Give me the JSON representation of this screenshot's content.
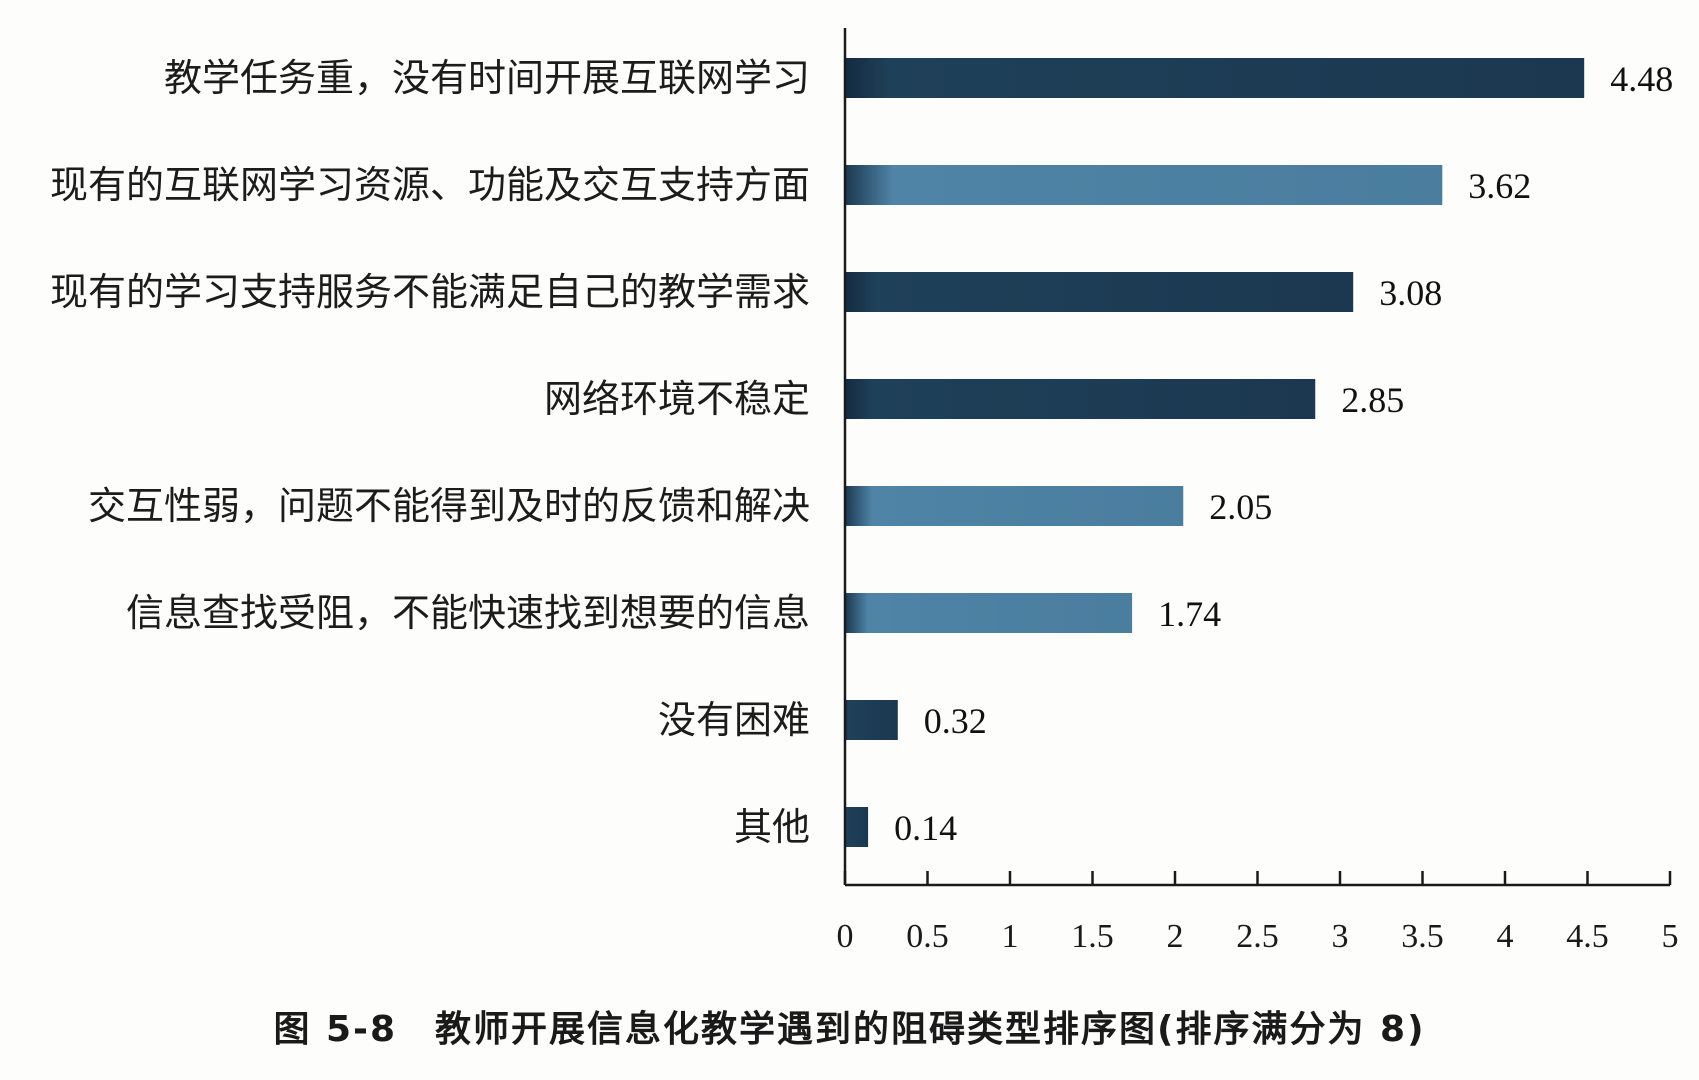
{
  "caption": "图 5-8　教师开展信息化教学遇到的阻碍类型排序图(排序满分为 8)",
  "colors": {
    "dark_bar": "#1d3a52",
    "light_bar": "#4a7d9e",
    "axis": "#1a1a1a"
  },
  "chart_data": {
    "type": "bar",
    "orientation": "horizontal",
    "categories": [
      "教学任务重，没有时间开展互联网学习",
      "现有的互联网学习资源、功能及交互支持方面",
      "现有的学习支持服务不能满足自己的教学需求",
      "网络环境不稳定",
      "交互性弱，问题不能得到及时的反馈和解决",
      "信息查找受阻，不能快速找到想要的信息",
      "没有困难",
      "其他"
    ],
    "values": [
      4.48,
      3.62,
      3.08,
      2.85,
      2.05,
      1.74,
      0.32,
      0.14
    ],
    "value_labels": [
      "4.48",
      "3.62",
      "3.08",
      "2.85",
      "2.05",
      "1.74",
      "0.32",
      "0.14"
    ],
    "bar_shades": [
      "dark",
      "light",
      "dark",
      "dark",
      "light",
      "light",
      "dark",
      "dark"
    ],
    "xlim": [
      0,
      5
    ],
    "xticks": [
      0,
      0.5,
      1,
      1.5,
      2,
      2.5,
      3,
      3.5,
      4,
      4.5,
      5
    ],
    "xtick_labels": [
      "0",
      "0.5",
      "1",
      "1.5",
      "2",
      "2.5",
      "3",
      "3.5",
      "4",
      "4.5",
      "5"
    ],
    "title": "",
    "xlabel": "",
    "ylabel": "",
    "grid": false,
    "legend": "none"
  }
}
